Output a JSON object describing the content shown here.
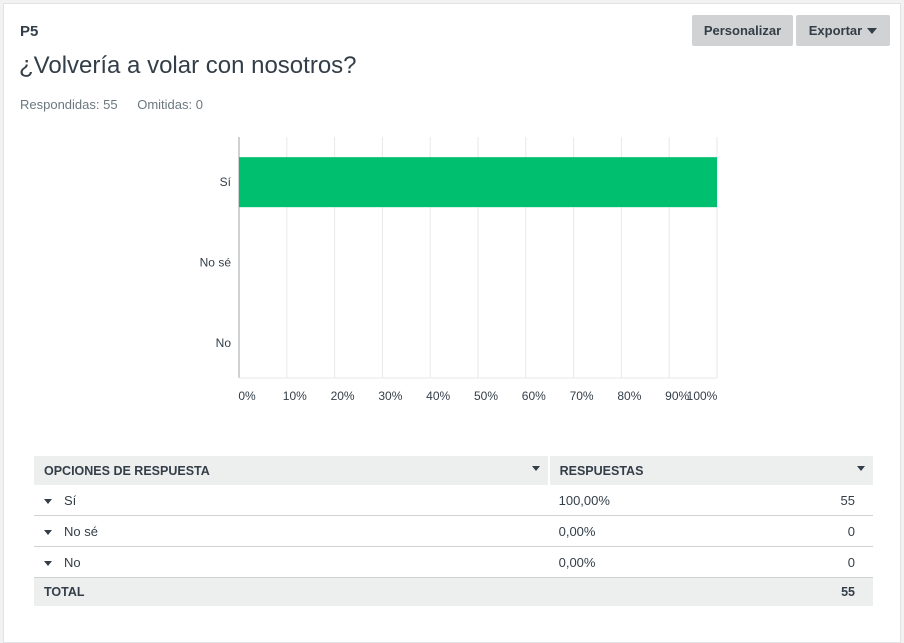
{
  "question": {
    "number": "P5",
    "title": "¿Volvería a volar con nosotros?",
    "answered": "Respondidas: 55",
    "skipped": "Omitidas: 0"
  },
  "toolbar": {
    "customize_label": "Personalizar",
    "export_label": "Exportar"
  },
  "colors": {
    "bar": "#00bf6f",
    "grid": "#e6e8e9",
    "axis": "#9da5aa"
  },
  "chart_data": {
    "type": "bar",
    "orientation": "horizontal",
    "categories": [
      "Sí",
      "No sé",
      "No"
    ],
    "values": [
      100,
      0,
      0
    ],
    "xlim": [
      0,
      100
    ],
    "xticks": [
      "0%",
      "10%",
      "20%",
      "30%",
      "40%",
      "50%",
      "60%",
      "70%",
      "80%",
      "90%",
      "100%"
    ],
    "grid": true
  },
  "table": {
    "headers": [
      "OPCIONES DE RESPUESTA",
      "RESPUESTAS"
    ],
    "rows": [
      {
        "option": "Sí",
        "percent": "100,00%",
        "count": "55"
      },
      {
        "option": "No sé",
        "percent": "0,00%",
        "count": "0"
      },
      {
        "option": "No",
        "percent": "0,00%",
        "count": "0"
      }
    ],
    "total_label": "TOTAL",
    "total_count": "55"
  }
}
